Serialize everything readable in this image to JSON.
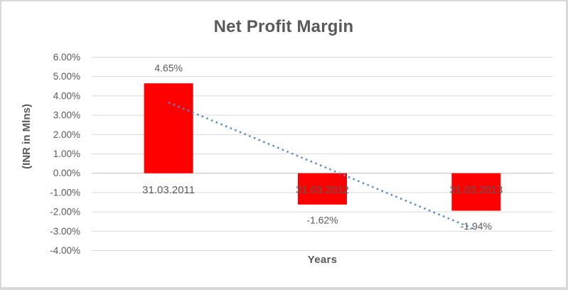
{
  "frame": {
    "background": "#ffffff",
    "border_color": "#d9d9d9"
  },
  "chart_data": {
    "type": "bar",
    "title": "Net Profit Margin",
    "xlabel": "Years",
    "ylabel": "(INR in Mlns)",
    "categories": [
      "31.03.2011",
      "31.03.2012",
      "31.03.2013"
    ],
    "values": [
      4.65,
      -1.62,
      -1.94
    ],
    "data_labels": [
      "4.65%",
      "-1.62%",
      "-1.94%"
    ],
    "ylim": [
      -4,
      6
    ],
    "ytick_step": 1,
    "ytick_labels": [
      "6.00%",
      "5.00%",
      "4.00%",
      "3.00%",
      "2.00%",
      "1.00%",
      "0.00%",
      "-1.00%",
      "-2.00%",
      "-3.00%",
      "-4.00%"
    ],
    "grid": true,
    "legend": "none",
    "bar_color": "#ff0000",
    "gridline_color": "#d9d9d9",
    "zero_gridline_color": "#c0c0c0",
    "axis_text_color": "#595959",
    "trendline": {
      "style": "dotted",
      "color": "#4f8bc9",
      "start_value": 3.66,
      "end_value": -2.93
    }
  }
}
